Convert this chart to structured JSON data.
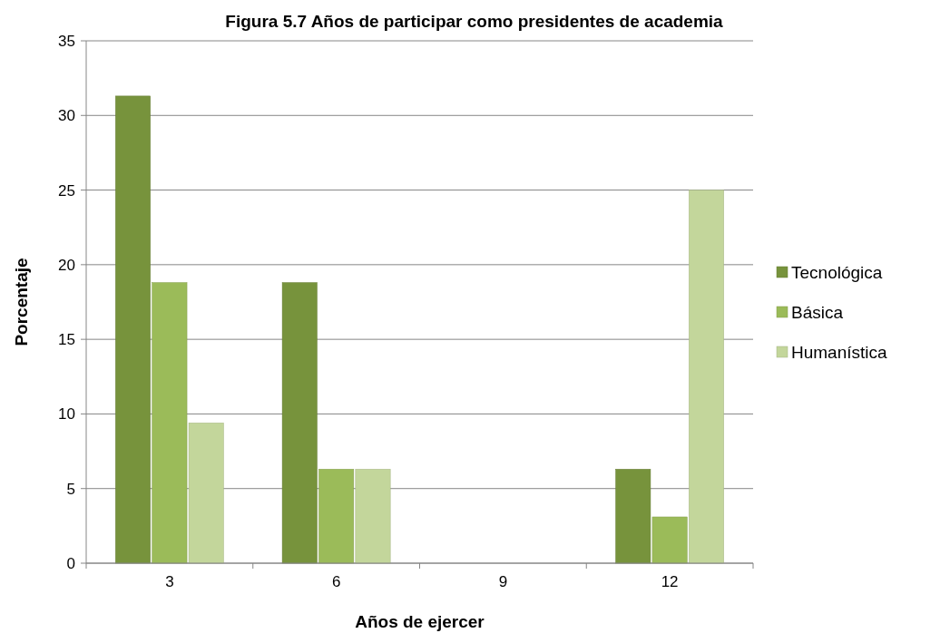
{
  "chart_data": {
    "type": "bar",
    "title": "Figura 5.7  Años de participar como presidentes de academia",
    "xlabel": "Años de ejercer",
    "ylabel": "Porcentaje",
    "categories": [
      "3",
      "6",
      "9",
      "12"
    ],
    "series": [
      {
        "name": "Tecnológica",
        "color": "#77933c",
        "values": [
          31.3,
          18.8,
          0,
          6.3
        ]
      },
      {
        "name": "Básica",
        "color": "#9bbb59",
        "values": [
          18.8,
          6.3,
          0,
          3.1
        ]
      },
      {
        "name": "Humanística",
        "color": "#c3d69b",
        "values": [
          9.4,
          6.3,
          0,
          25
        ]
      }
    ],
    "ylim": [
      0,
      35
    ],
    "yticks": [
      0,
      5,
      10,
      15,
      20,
      25,
      30,
      35
    ],
    "grid": "y",
    "legend": "right"
  }
}
